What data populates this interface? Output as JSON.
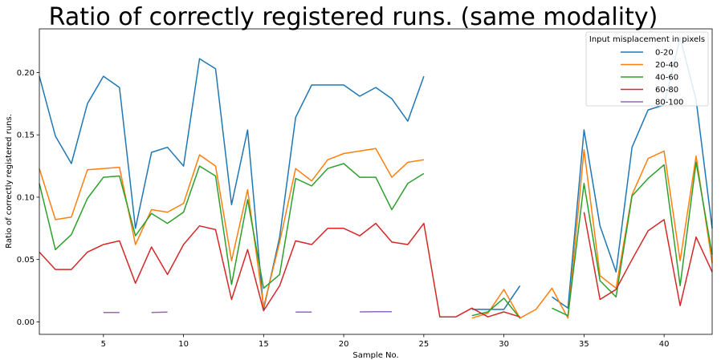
{
  "chart_data": {
    "type": "line",
    "title": "Ratio of correctly registered runs. (same modality)",
    "xlabel": "Sample No.",
    "ylabel": "Ratio of correctly registered runs.",
    "xlim": [
      1,
      43
    ],
    "ylim": [
      -0.01,
      0.235
    ],
    "xticks": [
      5,
      10,
      15,
      20,
      25,
      30,
      35,
      40
    ],
    "yticks": [
      0.0,
      0.05,
      0.1,
      0.15,
      0.2
    ],
    "ytick_labels": [
      "0.00",
      "0.05",
      "0.10",
      "0.15",
      "0.20"
    ],
    "grid": false,
    "legend": {
      "title": "Input misplacement in pixels",
      "position": "top-right"
    },
    "x": [
      1,
      2,
      3,
      4,
      5,
      6,
      7,
      8,
      9,
      10,
      11,
      12,
      13,
      14,
      15,
      16,
      17,
      18,
      19,
      20,
      21,
      22,
      23,
      24,
      25,
      26,
      27,
      28,
      29,
      30,
      31,
      32,
      33,
      34,
      35,
      36,
      37,
      38,
      39,
      40,
      41,
      42,
      43
    ],
    "series": [
      {
        "name": "0-20",
        "color": "#1f77b4",
        "values": [
          0.197,
          0.149,
          0.127,
          0.175,
          0.197,
          0.188,
          0.075,
          0.136,
          0.14,
          0.125,
          0.211,
          0.203,
          0.094,
          0.154,
          0.01,
          0.068,
          0.164,
          0.19,
          0.19,
          0.19,
          0.181,
          0.188,
          0.179,
          0.161,
          0.197,
          null,
          null,
          0.01,
          0.01,
          0.01,
          0.029,
          null,
          0.02,
          0.011,
          0.154,
          0.077,
          0.04,
          0.14,
          0.17,
          0.174,
          0.228,
          0.178,
          0.075
        ]
      },
      {
        "name": "20-40",
        "color": "#ff7f0e",
        "values": [
          0.123,
          0.082,
          0.084,
          0.122,
          0.123,
          0.124,
          0.062,
          0.09,
          0.088,
          0.095,
          0.134,
          0.125,
          0.049,
          0.106,
          0.012,
          0.064,
          0.123,
          0.113,
          0.13,
          0.135,
          0.137,
          0.139,
          0.116,
          0.128,
          0.13,
          null,
          null,
          0.003,
          0.007,
          0.026,
          0.003,
          0.01,
          0.027,
          0.003,
          0.138,
          0.037,
          0.027,
          0.102,
          0.131,
          0.137,
          0.049,
          0.133,
          0.047
        ]
      },
      {
        "name": "40-60",
        "color": "#2ca02c",
        "values": [
          0.111,
          0.058,
          0.07,
          0.099,
          0.116,
          0.117,
          0.069,
          0.087,
          0.079,
          0.088,
          0.125,
          0.117,
          0.03,
          0.098,
          0.027,
          0.038,
          0.115,
          0.109,
          0.123,
          0.127,
          0.116,
          0.116,
          0.09,
          0.111,
          0.119,
          null,
          null,
          0.005,
          0.008,
          0.019,
          0.003,
          null,
          0.011,
          0.005,
          0.111,
          0.033,
          0.02,
          0.101,
          0.115,
          0.126,
          0.029,
          0.128,
          0.054
        ]
      },
      {
        "name": "60-80",
        "color": "#d62728",
        "values": [
          0.056,
          0.042,
          0.042,
          0.056,
          0.062,
          0.065,
          0.031,
          0.06,
          0.038,
          0.062,
          0.077,
          0.074,
          0.018,
          0.058,
          0.009,
          0.029,
          0.065,
          0.062,
          0.075,
          0.075,
          0.069,
          0.079,
          0.064,
          0.062,
          0.079,
          0.004,
          0.004,
          0.011,
          0.004,
          0.008,
          0.004,
          null,
          null,
          null,
          0.088,
          0.018,
          0.026,
          0.05,
          0.073,
          0.082,
          0.013,
          0.068,
          0.04
        ]
      },
      {
        "name": "80-100",
        "color": "#9467bd",
        "values": [
          null,
          null,
          null,
          null,
          0.0075,
          0.0075,
          null,
          0.0075,
          0.0078,
          null,
          null,
          null,
          null,
          null,
          null,
          null,
          0.0078,
          0.0078,
          null,
          null,
          0.008,
          0.0082,
          0.0082,
          null,
          null,
          null,
          null,
          null,
          null,
          null,
          null,
          null,
          null,
          null,
          null,
          null,
          null,
          null,
          null,
          null,
          null,
          null,
          null
        ]
      }
    ]
  }
}
